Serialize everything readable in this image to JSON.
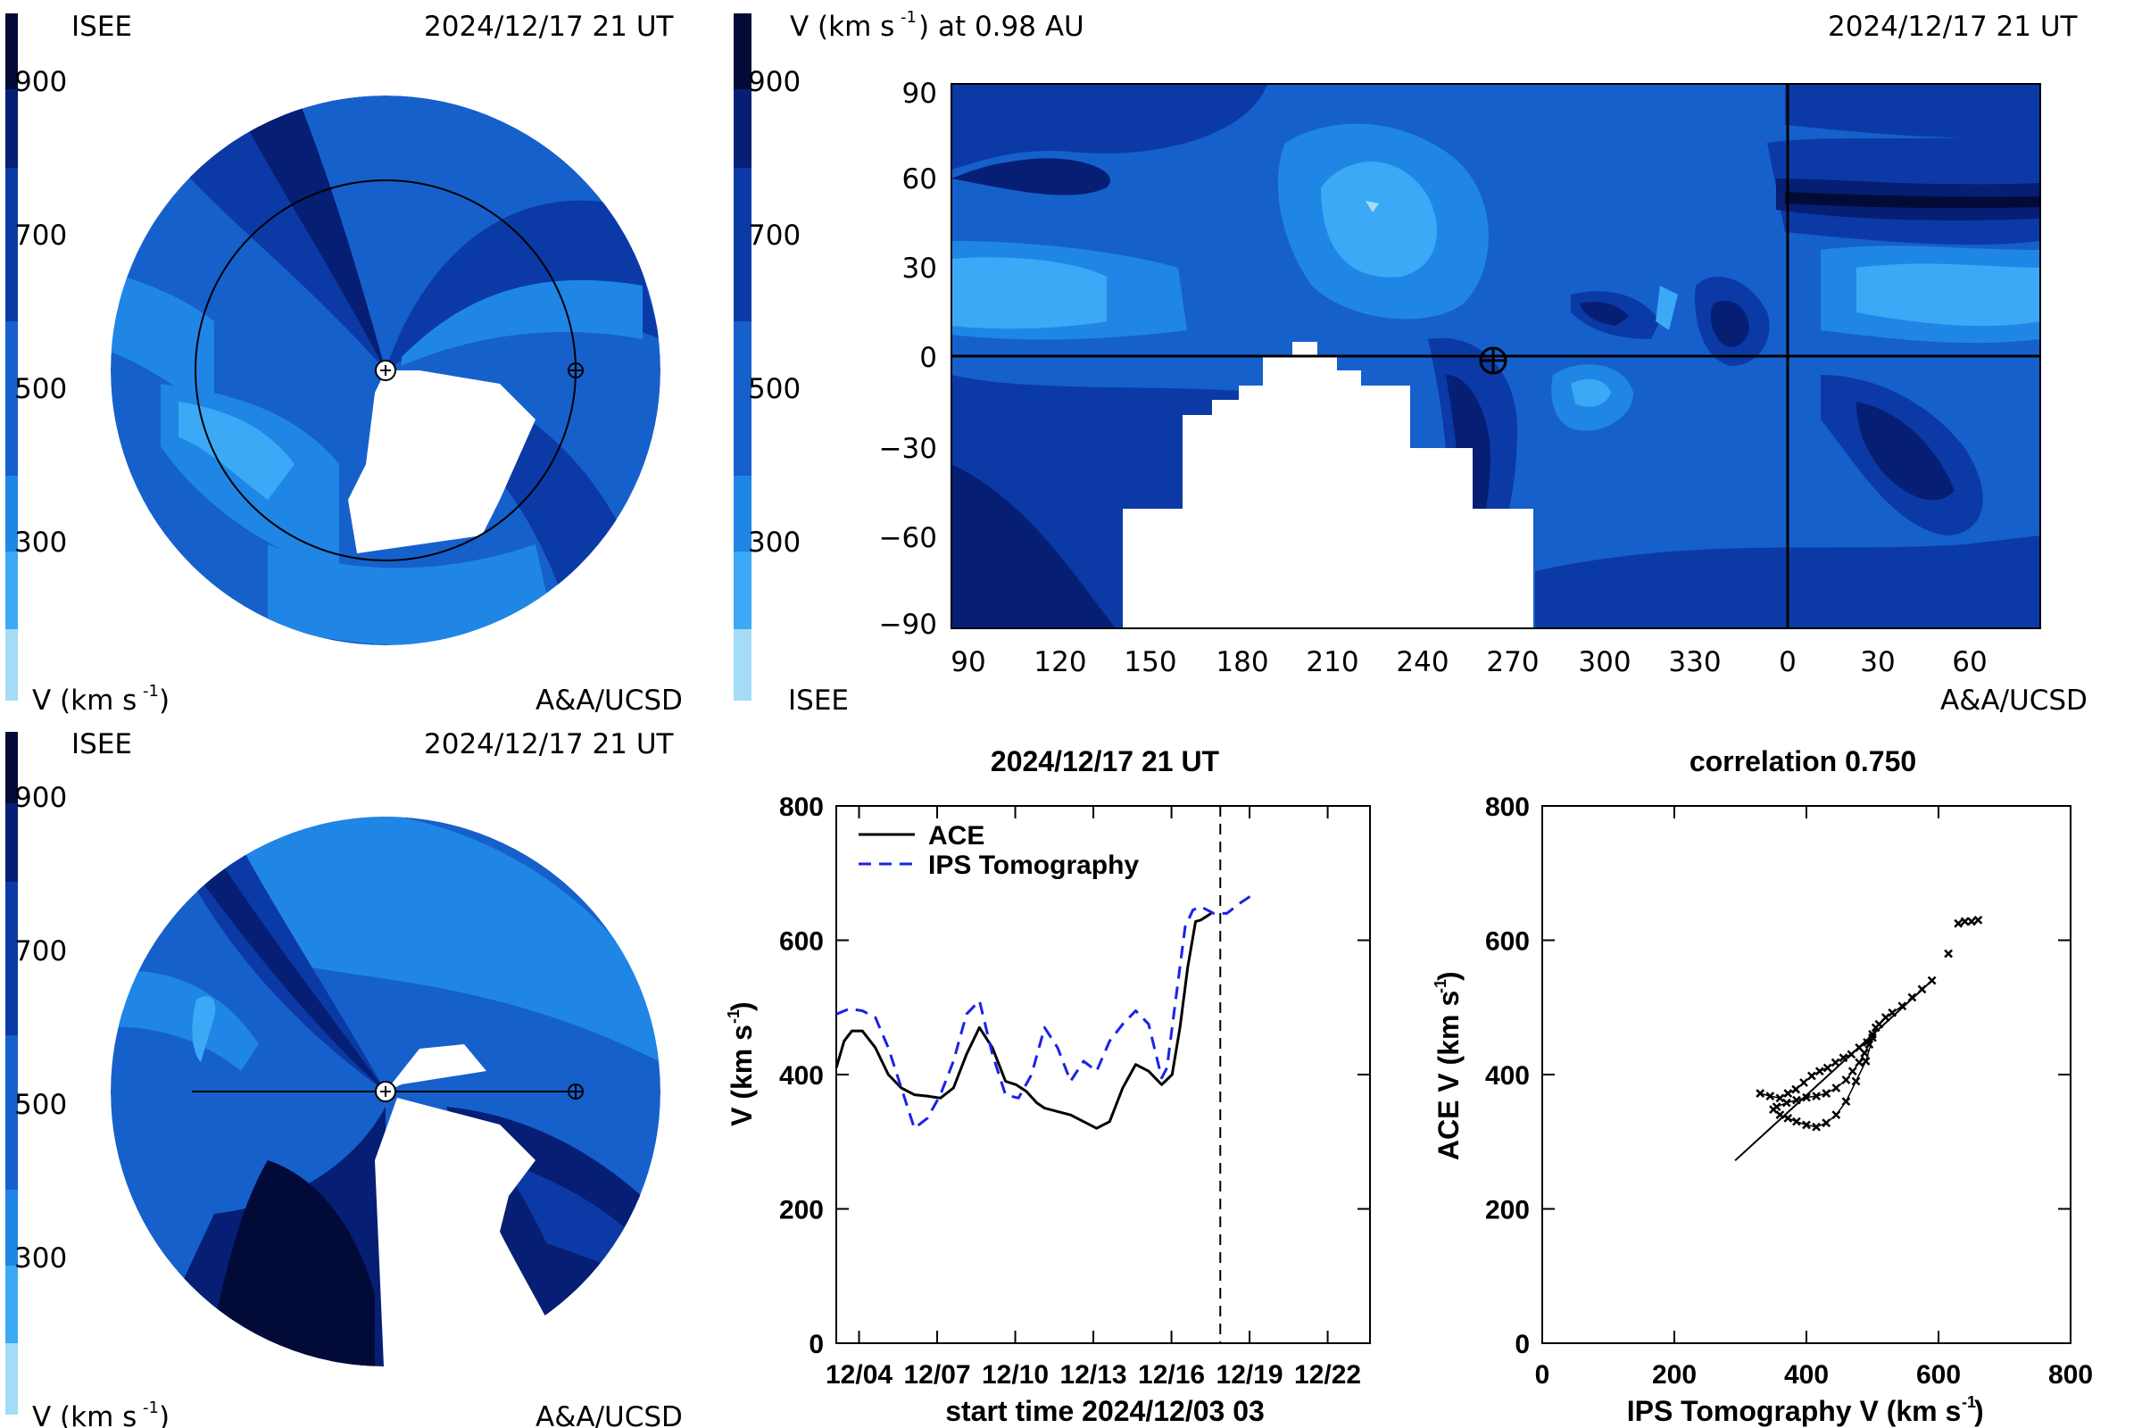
{
  "colors": {
    "levels": [
      "#a6dcf6",
      "#3ba9f5",
      "#1f86e6",
      "#1660cc",
      "#0b3aa6",
      "#061f74",
      "#020b38"
    ],
    "white": "#ffffff",
    "black": "#000000",
    "series_ace": "#000000",
    "series_ips": "#1a22e8"
  },
  "panel_tl": {
    "label_left": "ISEE",
    "label_right": "2024/12/17 21 UT",
    "bottom_left": "V (km s",
    "bottom_right": "A&A/UCSD",
    "colorbar_ticks": [
      "900",
      "700",
      "500",
      "300"
    ]
  },
  "panel_bl": {
    "label_left": "ISEE",
    "label_right": "2024/12/17 21 UT",
    "bottom_left": "V (km s",
    "bottom_right": "A&A/UCSD",
    "colorbar_ticks": [
      "900",
      "700",
      "500",
      "300"
    ]
  },
  "map": {
    "title": "V (km s",
    "title_suffix": ") at 0.98 AU",
    "date": "2024/12/17 21 UT",
    "bottom_left": "ISEE",
    "bottom_right": "A&A/UCSD",
    "colorbar_ticks": [
      "900",
      "700",
      "500",
      "300"
    ],
    "x_ticks": [
      "90",
      "120",
      "150",
      "180",
      "210",
      "240",
      "270",
      "300",
      "330",
      "0",
      "30",
      "60"
    ],
    "y_ticks": [
      "90",
      "60",
      "30",
      "0",
      "−30",
      "−60",
      "−90"
    ]
  },
  "chart_data": [
    {
      "type": "line",
      "title": "2024/12/17 21 UT",
      "xlabel": "start time 2024/12/03 03",
      "ylabel": "V (km s",
      "ylim": [
        0,
        800
      ],
      "xlim": [
        0,
        20.5
      ],
      "x_tick_labels": [
        "12/04",
        "12/07",
        "12/10",
        "12/13",
        "12/16",
        "12/19",
        "12/22"
      ],
      "x_tick_days": [
        0.875,
        3.875,
        6.875,
        9.875,
        12.875,
        15.875,
        18.875
      ],
      "y_ticks": [
        0,
        200,
        400,
        600,
        800
      ],
      "current_time_day": 14.75,
      "legend_position": "top-left",
      "series": [
        {
          "name": "ACE",
          "style": "solid",
          "x": [
            0,
            0.3,
            0.6,
            1.0,
            1.5,
            2.0,
            2.5,
            3.0,
            3.5,
            4.0,
            4.5,
            5.0,
            5.5,
            6.0,
            6.5,
            6.9,
            7.3,
            7.7,
            8.0,
            8.5,
            9.0,
            9.5,
            10.0,
            10.5,
            11.0,
            11.5,
            12.0,
            12.5,
            12.9,
            13.2,
            13.5,
            13.8,
            14.0,
            14.2,
            14.4
          ],
          "y": [
            410,
            450,
            465,
            465,
            440,
            400,
            380,
            370,
            368,
            365,
            380,
            430,
            470,
            440,
            390,
            385,
            375,
            358,
            350,
            345,
            340,
            330,
            320,
            330,
            380,
            415,
            405,
            385,
            400,
            470,
            560,
            628,
            630,
            635,
            640
          ]
        },
        {
          "name": "IPS Tomography",
          "style": "dashed",
          "x": [
            0,
            0.5,
            1.0,
            1.5,
            2.0,
            2.5,
            3.0,
            3.5,
            4.0,
            4.5,
            5.0,
            5.5,
            6.0,
            6.5,
            7.0,
            7.5,
            8.0,
            8.5,
            9.0,
            9.5,
            10.0,
            10.5,
            11.0,
            11.5,
            12.0,
            12.5,
            12.7,
            13.0,
            13.4,
            13.7,
            14.0,
            14.5,
            15.0,
            15.5,
            16.0
          ],
          "y": [
            490,
            498,
            495,
            485,
            440,
            380,
            320,
            335,
            370,
            420,
            490,
            510,
            430,
            370,
            365,
            400,
            470,
            440,
            390,
            420,
            405,
            450,
            475,
            495,
            475,
            395,
            410,
            500,
            620,
            645,
            650,
            640,
            640,
            655,
            668
          ]
        }
      ]
    },
    {
      "type": "scatter",
      "title": "correlation 0.750",
      "xlabel": "IPS Tomography V (km s",
      "ylabel": "ACE V (km s",
      "xlim": [
        0,
        800
      ],
      "ylim": [
        0,
        800
      ],
      "x_ticks": [
        0,
        200,
        400,
        600,
        800
      ],
      "y_ticks": [
        0,
        200,
        400,
        600,
        800
      ],
      "fit_line": {
        "x": [
          292,
          590
        ],
        "y": [
          272,
          540
        ]
      },
      "points": {
        "x": [
          330,
          345,
          360,
          372,
          384,
          396,
          408,
          420,
          432,
          444,
          456,
          468,
          480,
          492,
          500,
          505,
          490,
          475,
          460,
          445,
          430,
          415,
          400,
          385,
          372,
          360,
          350,
          355,
          370,
          385,
          400,
          415,
          430,
          445,
          460,
          470,
          480,
          488,
          495,
          500,
          510,
          520,
          530,
          545,
          560,
          575,
          590,
          615,
          630,
          640,
          650,
          660
        ],
        "y": [
          372,
          368,
          365,
          372,
          378,
          388,
          398,
          405,
          410,
          418,
          425,
          430,
          440,
          448,
          455,
          470,
          420,
          390,
          360,
          340,
          328,
          322,
          325,
          330,
          335,
          340,
          348,
          352,
          358,
          362,
          366,
          368,
          372,
          380,
          392,
          405,
          418,
          432,
          445,
          460,
          475,
          485,
          492,
          502,
          515,
          527,
          540,
          580,
          625,
          628,
          628,
          630
        ]
      }
    }
  ]
}
